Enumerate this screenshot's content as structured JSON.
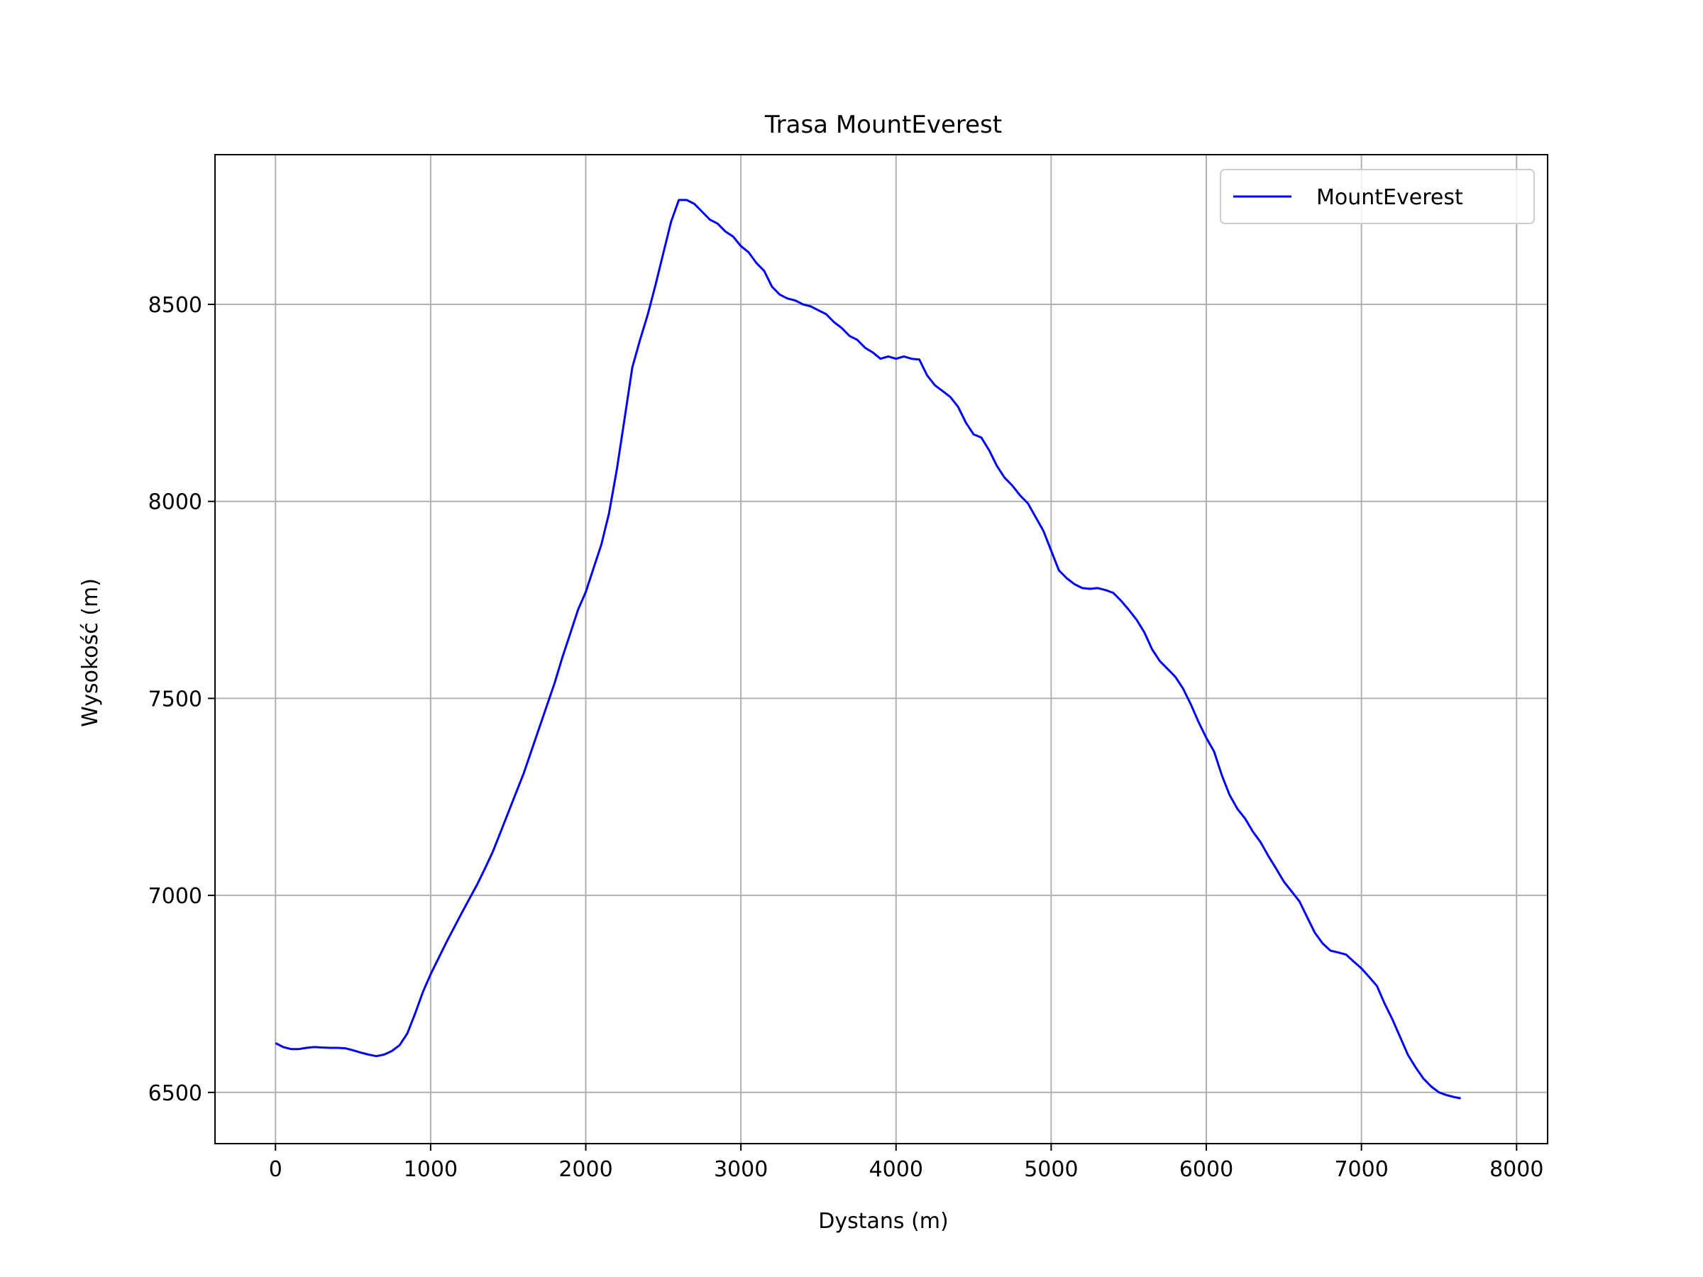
{
  "chart_data": {
    "type": "line",
    "title": "Trasa MountEverest",
    "xlabel": "Dystans (m)",
    "ylabel": "Wysokość (m)",
    "xlim": [
      -390,
      8200
    ],
    "ylim": [
      6370,
      8880
    ],
    "xticks": [
      0,
      1000,
      2000,
      3000,
      4000,
      5000,
      6000,
      7000,
      8000
    ],
    "yticks": [
      6500,
      7000,
      7500,
      8000,
      8500
    ],
    "xtick_labels": [
      "0",
      "1000",
      "2000",
      "3000",
      "4000",
      "5000",
      "6000",
      "7000",
      "8000"
    ],
    "ytick_labels": [
      "6500",
      "7000",
      "7500",
      "8000",
      "8500"
    ],
    "grid": true,
    "legend_position": "top-right",
    "series": [
      {
        "name": "MountEverest",
        "color": "#0000ff",
        "points": [
          [
            0,
            6625
          ],
          [
            50,
            6615
          ],
          [
            100,
            6610
          ],
          [
            150,
            6610
          ],
          [
            200,
            6613
          ],
          [
            250,
            6615
          ],
          [
            300,
            6614
          ],
          [
            350,
            6613
          ],
          [
            400,
            6613
          ],
          [
            450,
            6612
          ],
          [
            500,
            6607
          ],
          [
            550,
            6601
          ],
          [
            600,
            6596
          ],
          [
            650,
            6592
          ],
          [
            700,
            6596
          ],
          [
            750,
            6605
          ],
          [
            800,
            6620
          ],
          [
            850,
            6650
          ],
          [
            900,
            6700
          ],
          [
            950,
            6755
          ],
          [
            1000,
            6800
          ],
          [
            1100,
            6880
          ],
          [
            1200,
            6955
          ],
          [
            1300,
            7028
          ],
          [
            1350,
            7068
          ],
          [
            1400,
            7110
          ],
          [
            1450,
            7160
          ],
          [
            1500,
            7210
          ],
          [
            1600,
            7310
          ],
          [
            1700,
            7425
          ],
          [
            1800,
            7540
          ],
          [
            1850,
            7605
          ],
          [
            1900,
            7665
          ],
          [
            1950,
            7725
          ],
          [
            2000,
            7770
          ],
          [
            2050,
            7830
          ],
          [
            2100,
            7890
          ],
          [
            2150,
            7970
          ],
          [
            2200,
            8080
          ],
          [
            2250,
            8210
          ],
          [
            2300,
            8340
          ],
          [
            2350,
            8410
          ],
          [
            2400,
            8475
          ],
          [
            2450,
            8550
          ],
          [
            2500,
            8630
          ],
          [
            2550,
            8710
          ],
          [
            2600,
            8765
          ],
          [
            2650,
            8765
          ],
          [
            2700,
            8755
          ],
          [
            2750,
            8735
          ],
          [
            2800,
            8715
          ],
          [
            2850,
            8705
          ],
          [
            2900,
            8685
          ],
          [
            2950,
            8672
          ],
          [
            3000,
            8648
          ],
          [
            3050,
            8632
          ],
          [
            3100,
            8605
          ],
          [
            3150,
            8585
          ],
          [
            3200,
            8545
          ],
          [
            3250,
            8525
          ],
          [
            3300,
            8515
          ],
          [
            3350,
            8510
          ],
          [
            3400,
            8500
          ],
          [
            3450,
            8495
          ],
          [
            3500,
            8485
          ],
          [
            3550,
            8475
          ],
          [
            3600,
            8455
          ],
          [
            3650,
            8440
          ],
          [
            3700,
            8420
          ],
          [
            3750,
            8410
          ],
          [
            3800,
            8390
          ],
          [
            3850,
            8378
          ],
          [
            3900,
            8362
          ],
          [
            3950,
            8368
          ],
          [
            4000,
            8362
          ],
          [
            4050,
            8368
          ],
          [
            4100,
            8362
          ],
          [
            4150,
            8360
          ],
          [
            4200,
            8320
          ],
          [
            4250,
            8295
          ],
          [
            4300,
            8280
          ],
          [
            4350,
            8265
          ],
          [
            4400,
            8240
          ],
          [
            4450,
            8200
          ],
          [
            4500,
            8170
          ],
          [
            4550,
            8162
          ],
          [
            4600,
            8130
          ],
          [
            4650,
            8090
          ],
          [
            4700,
            8060
          ],
          [
            4750,
            8040
          ],
          [
            4800,
            8015
          ],
          [
            4850,
            7995
          ],
          [
            4900,
            7960
          ],
          [
            4950,
            7925
          ],
          [
            5000,
            7875
          ],
          [
            5050,
            7825
          ],
          [
            5100,
            7805
          ],
          [
            5150,
            7790
          ],
          [
            5200,
            7780
          ],
          [
            5250,
            7778
          ],
          [
            5300,
            7780
          ],
          [
            5350,
            7775
          ],
          [
            5400,
            7768
          ],
          [
            5450,
            7748
          ],
          [
            5500,
            7725
          ],
          [
            5550,
            7700
          ],
          [
            5600,
            7668
          ],
          [
            5650,
            7625
          ],
          [
            5700,
            7595
          ],
          [
            5750,
            7575
          ],
          [
            5800,
            7555
          ],
          [
            5850,
            7525
          ],
          [
            5900,
            7485
          ],
          [
            5950,
            7440
          ],
          [
            6000,
            7400
          ],
          [
            6050,
            7365
          ],
          [
            6100,
            7305
          ],
          [
            6150,
            7255
          ],
          [
            6200,
            7220
          ],
          [
            6250,
            7195
          ],
          [
            6300,
            7162
          ],
          [
            6350,
            7135
          ],
          [
            6400,
            7100
          ],
          [
            6450,
            7068
          ],
          [
            6500,
            7035
          ],
          [
            6550,
            7010
          ],
          [
            6600,
            6985
          ],
          [
            6650,
            6945
          ],
          [
            6700,
            6905
          ],
          [
            6750,
            6878
          ],
          [
            6800,
            6860
          ],
          [
            6850,
            6855
          ],
          [
            6900,
            6850
          ],
          [
            6950,
            6832
          ],
          [
            7000,
            6815
          ],
          [
            7050,
            6793
          ],
          [
            7100,
            6770
          ],
          [
            7150,
            6725
          ],
          [
            7200,
            6685
          ],
          [
            7250,
            6640
          ],
          [
            7300,
            6595
          ],
          [
            7350,
            6563
          ],
          [
            7400,
            6535
          ],
          [
            7450,
            6515
          ],
          [
            7500,
            6500
          ],
          [
            7550,
            6493
          ],
          [
            7600,
            6488
          ],
          [
            7640,
            6485
          ]
        ]
      }
    ]
  }
}
